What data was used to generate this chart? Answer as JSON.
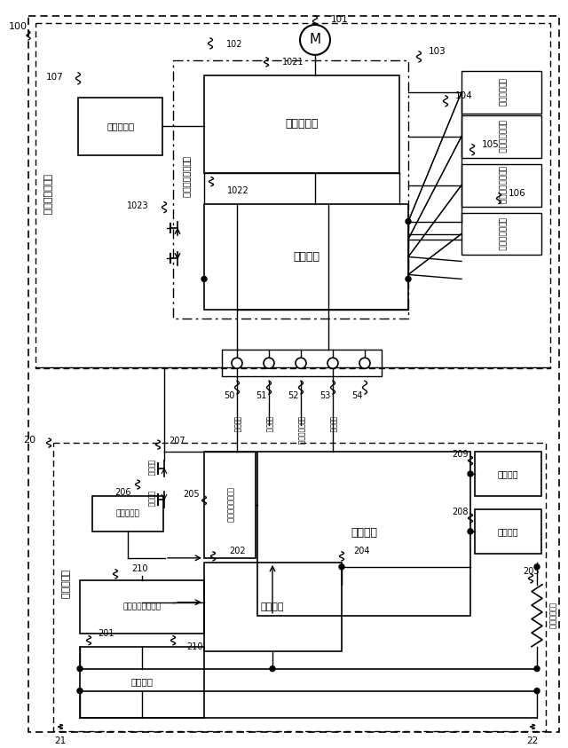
{
  "bg_color": "#ffffff",
  "japanese": {
    "motor_drive_unit": "モータ駆動装置",
    "battery_pack": "電池パック",
    "operation_panel": "操作パネル",
    "motor_drive_controller": "モータ駆動制御器",
    "inverter": "インバータ",
    "drive_circuit": "駆動回路",
    "torque_sensor": "トルクセンサ",
    "brake_sensor": "ブレーキセンサ",
    "pedal_rotation_sensor": "ペダル回転センサ",
    "front_wheel_rotation_sensor": "前輪回転センサ",
    "positive_terminal": "正極端子",
    "comm_terminal": "通信端子",
    "charger_output_terminal": "充電器発出端子",
    "negative_terminal": "負極端子",
    "battery_cell": "電池セル",
    "cell_monitor": "セル監視デバイス",
    "monitor_circuit": "監視回路",
    "control_circuit": "制御回路",
    "onoff_control_circuit": "オンオフ制御回路",
    "output_circuit": "出力回路",
    "input_circuit": "入力回路",
    "temp_sensor": "温度センサ",
    "current_detection_resistor": "電流検出抵抗",
    "charge_control": "充電制御",
    "discharge_control": "放電制御"
  }
}
